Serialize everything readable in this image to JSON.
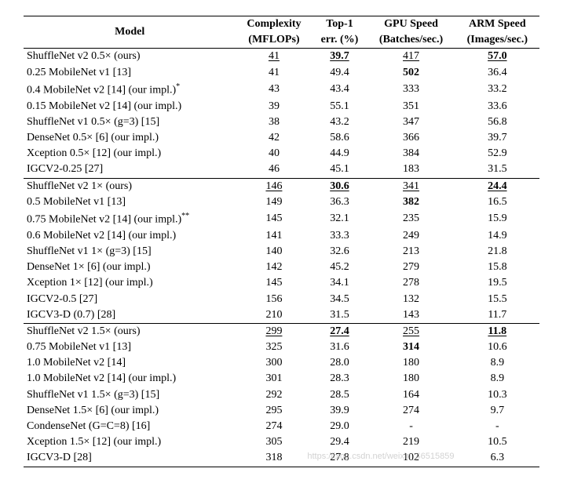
{
  "table": {
    "type": "table",
    "font_family": "Times New Roman",
    "font_size_pt": 10,
    "border_color": "#000000",
    "background_color": "#ffffff",
    "columns": [
      {
        "key": "model",
        "label_top": "Model",
        "label_bottom": "",
        "align": "left"
      },
      {
        "key": "complexity",
        "label_top": "Complexity",
        "label_bottom": "(MFLOPs)",
        "align": "center"
      },
      {
        "key": "top1",
        "label_top": "Top-1",
        "label_bottom": "err. (%)",
        "align": "center"
      },
      {
        "key": "gpu",
        "label_top": "GPU Speed",
        "label_bottom": "(Batches/sec.)",
        "align": "center"
      },
      {
        "key": "arm",
        "label_top": "ARM Speed",
        "label_bottom": "(Images/sec.)",
        "align": "center"
      }
    ],
    "groups": [
      {
        "rows": [
          {
            "model": "ShuffleNet v2 0.5× (ours)",
            "complexity": "41",
            "top1": "39.7",
            "gpu": "417",
            "arm": "57.0",
            "bu": {
              "complexity": "u",
              "top1": "bu",
              "gpu": "u",
              "arm": "bu"
            }
          },
          {
            "model": "0.25 MobileNet v1 [13]",
            "complexity": "41",
            "top1": "49.4",
            "gpu": "502",
            "arm": "36.4",
            "bu": {
              "gpu": "b"
            }
          },
          {
            "model": "0.4 MobileNet v2 [14] (our impl.)",
            "sup": "*",
            "complexity": "43",
            "top1": "43.4",
            "gpu": "333",
            "arm": "33.2"
          },
          {
            "model": "0.15 MobileNet v2 [14] (our impl.)",
            "complexity": "39",
            "top1": "55.1",
            "gpu": "351",
            "arm": "33.6"
          },
          {
            "model": "ShuffleNet v1 0.5× (g=3) [15]",
            "complexity": "38",
            "top1": "43.2",
            "gpu": "347",
            "arm": "56.8"
          },
          {
            "model": "DenseNet 0.5× [6] (our impl.)",
            "complexity": "42",
            "top1": "58.6",
            "gpu": "366",
            "arm": "39.7"
          },
          {
            "model": "Xception 0.5× [12] (our impl.)",
            "complexity": "40",
            "top1": "44.9",
            "gpu": "384",
            "arm": "52.9"
          },
          {
            "model": "IGCV2-0.25 [27]",
            "complexity": "46",
            "top1": "45.1",
            "gpu": "183",
            "arm": "31.5"
          }
        ]
      },
      {
        "rows": [
          {
            "model": "ShuffleNet v2 1× (ours)",
            "complexity": "146",
            "top1": "30.6",
            "gpu": "341",
            "arm": "24.4",
            "bu": {
              "complexity": "u",
              "top1": "bu",
              "gpu": "u",
              "arm": "bu"
            }
          },
          {
            "model": "0.5 MobileNet v1 [13]",
            "complexity": "149",
            "top1": "36.3",
            "gpu": "382",
            "arm": "16.5",
            "bu": {
              "gpu": "b"
            }
          },
          {
            "model": "0.75 MobileNet v2 [14] (our impl.)",
            "sup": "**",
            "complexity": "145",
            "top1": "32.1",
            "gpu": "235",
            "arm": "15.9"
          },
          {
            "model": "0.6 MobileNet v2 [14] (our impl.)",
            "complexity": "141",
            "top1": "33.3",
            "gpu": "249",
            "arm": "14.9"
          },
          {
            "model": "ShuffleNet v1 1× (g=3) [15]",
            "complexity": "140",
            "top1": "32.6",
            "gpu": "213",
            "arm": "21.8"
          },
          {
            "model": "DenseNet 1× [6] (our impl.)",
            "complexity": "142",
            "top1": "45.2",
            "gpu": "279",
            "arm": "15.8"
          },
          {
            "model": "Xception 1× [12] (our impl.)",
            "complexity": "145",
            "top1": "34.1",
            "gpu": "278",
            "arm": "19.5"
          },
          {
            "model": "IGCV2-0.5 [27]",
            "complexity": "156",
            "top1": "34.5",
            "gpu": "132",
            "arm": "15.5"
          },
          {
            "model": "IGCV3-D (0.7) [28]",
            "complexity": "210",
            "top1": "31.5",
            "gpu": "143",
            "arm": "11.7"
          }
        ]
      },
      {
        "rows": [
          {
            "model": "ShuffleNet v2 1.5× (ours)",
            "complexity": "299",
            "top1": "27.4",
            "gpu": "255",
            "arm": "11.8",
            "bu": {
              "complexity": "u",
              "top1": "bu",
              "gpu": "u",
              "arm": "bu"
            }
          },
          {
            "model": "0.75 MobileNet v1 [13]",
            "complexity": "325",
            "top1": "31.6",
            "gpu": "314",
            "arm": "10.6",
            "bu": {
              "gpu": "b"
            }
          },
          {
            "model": "1.0 MobileNet v2 [14]",
            "complexity": "300",
            "top1": "28.0",
            "gpu": "180",
            "arm": "8.9"
          },
          {
            "model": "1.0 MobileNet v2 [14] (our impl.)",
            "complexity": "301",
            "top1": "28.3",
            "gpu": "180",
            "arm": "8.9"
          },
          {
            "model": "ShuffleNet v1 1.5× (g=3) [15]",
            "complexity": "292",
            "top1": "28.5",
            "gpu": "164",
            "arm": "10.3"
          },
          {
            "model": "DenseNet 1.5× [6] (our impl.)",
            "complexity": "295",
            "top1": "39.9",
            "gpu": "274",
            "arm": "9.7"
          },
          {
            "model": "CondenseNet (G=C=8) [16]",
            "complexity": "274",
            "top1": "29.0",
            "gpu": "-",
            "arm": "-"
          },
          {
            "model": "Xception 1.5× [12] (our impl.)",
            "complexity": "305",
            "top1": "29.4",
            "gpu": "219",
            "arm": "10.5"
          },
          {
            "model": "IGCV3-D [28]",
            "complexity": "318",
            "top1": "27.8",
            "gpu": "102",
            "arm": "6.3",
            "wm": true
          }
        ]
      }
    ],
    "watermark_text": "https://blog.csdn.net/weixin_46515859"
  }
}
